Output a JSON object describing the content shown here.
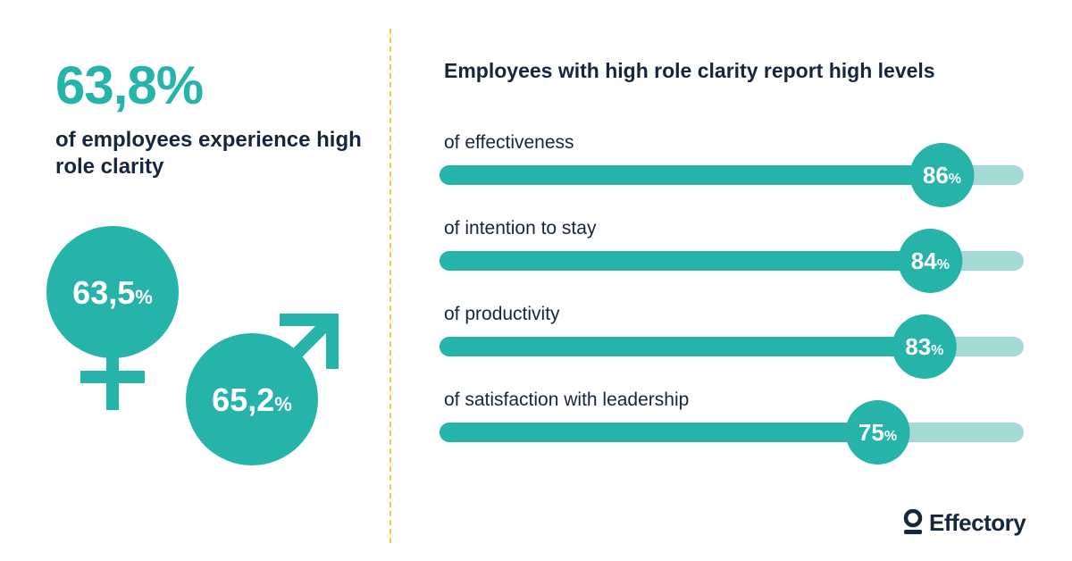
{
  "headline": {
    "value": "63,8%",
    "caption": "of employees experience high role clarity"
  },
  "gender": {
    "female": {
      "value": "63,5",
      "unit": "%",
      "icon": "female-symbol-icon"
    },
    "male": {
      "value": "65,2",
      "unit": "%",
      "icon": "male-symbol-icon"
    }
  },
  "colors": {
    "accent": "#25b3aa",
    "track": "#a5dbd6",
    "text": "#16263d",
    "divider": "#f3c94a"
  },
  "chart_data": {
    "type": "bar",
    "title": "Employees with high role clarity report high levels",
    "categories": [
      "of effectiveness",
      "of intention to stay",
      "of productivity",
      "of satisfaction with leadership"
    ],
    "values": [
      86,
      84,
      83,
      75
    ],
    "value_labels": [
      "86",
      "84",
      "83",
      "75"
    ],
    "unit": "%",
    "xlim": [
      0,
      100
    ],
    "orientation": "horizontal",
    "grid": false
  },
  "brand": {
    "name": "Effectory",
    "icon": "effectory-logo-icon"
  }
}
